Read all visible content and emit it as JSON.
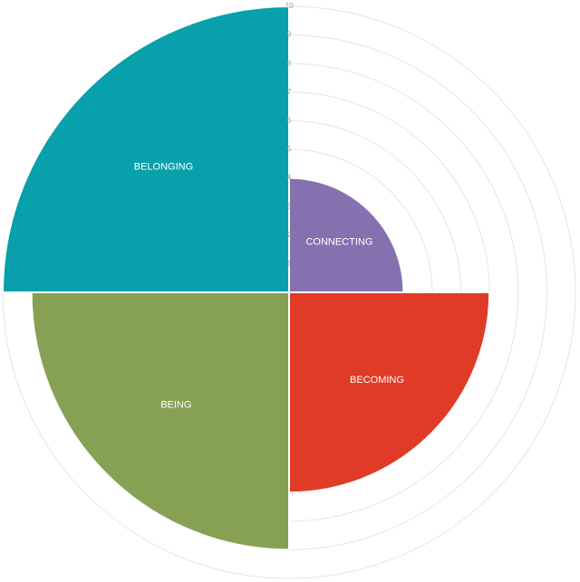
{
  "chart_data": {
    "type": "polar-area",
    "rmax": 10,
    "grid": true,
    "tick_labels": [
      "1",
      "2",
      "3",
      "4",
      "5",
      "6",
      "7",
      "8",
      "9",
      "10"
    ],
    "slices": [
      {
        "label": "CONNECTING",
        "value": 4,
        "color": "#8570b0"
      },
      {
        "label": "BECOMING",
        "value": 7,
        "color": "#e03b26"
      },
      {
        "label": "BEING",
        "value": 9,
        "color": "#86a154"
      },
      {
        "label": "BELONGING",
        "value": 10,
        "color": "#08a0aa"
      }
    ]
  }
}
